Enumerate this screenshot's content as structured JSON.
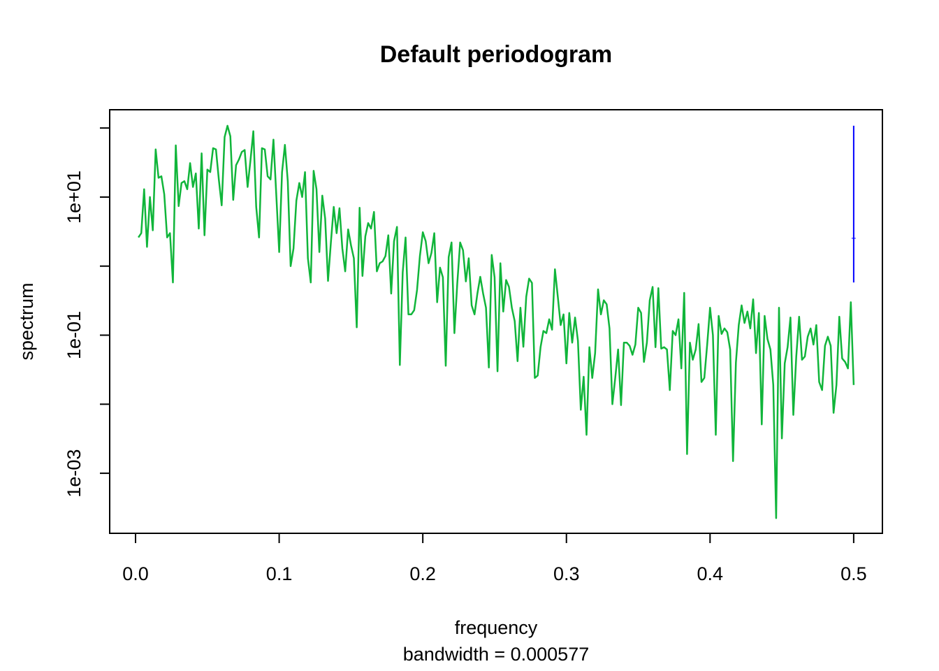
{
  "chart_data": {
    "type": "line",
    "title": "Default periodogram",
    "x_label": "frequency",
    "subtitle": "bandwidth = 0.000577",
    "y_label": "spectrum",
    "log_y": true,
    "xlim": [
      -0.018,
      0.52
    ],
    "ylim": [
      0.000135,
      184
    ],
    "xticks": [
      {
        "value": 0,
        "label": "0.0"
      },
      0.1,
      0.2,
      0.3,
      0.4,
      0.5
    ],
    "yticks": [
      {
        "value": 10,
        "label": "1e+01"
      },
      {
        "value": 0.1,
        "label": "1e-01"
      },
      {
        "value": 0.001,
        "label": "1e-03"
      }
    ],
    "yminor_ticks": [
      100,
      1,
      0.01
    ],
    "x": [
      0.002,
      0.004,
      0.006,
      0.008,
      0.01,
      0.012,
      0.014,
      0.016,
      0.018,
      0.02,
      0.022,
      0.024,
      0.026,
      0.028,
      0.03,
      0.032,
      0.034,
      0.036,
      0.038,
      0.04,
      0.042,
      0.044,
      0.046,
      0.048,
      0.05,
      0.052,
      0.054,
      0.056,
      0.058,
      0.06,
      0.062,
      0.064,
      0.066,
      0.068,
      0.07,
      0.072,
      0.074,
      0.076,
      0.078,
      0.08,
      0.082,
      0.084,
      0.086,
      0.088,
      0.09,
      0.092,
      0.094,
      0.096,
      0.098,
      0.1,
      0.102,
      0.104,
      0.106,
      0.108,
      0.11,
      0.112,
      0.114,
      0.116,
      0.118,
      0.12,
      0.122,
      0.124,
      0.126,
      0.128,
      0.13,
      0.132,
      0.134,
      0.136,
      0.138,
      0.14,
      0.142,
      0.144,
      0.146,
      0.148,
      0.15,
      0.152,
      0.154,
      0.156,
      0.158,
      0.16,
      0.162,
      0.164,
      0.166,
      0.168,
      0.17,
      0.172,
      0.174,
      0.176,
      0.178,
      0.18,
      0.182,
      0.184,
      0.186,
      0.188,
      0.19,
      0.192,
      0.194,
      0.196,
      0.198,
      0.2,
      0.202,
      0.204,
      0.206,
      0.208,
      0.21,
      0.212,
      0.214,
      0.216,
      0.218,
      0.22,
      0.222,
      0.224,
      0.226,
      0.228,
      0.23,
      0.232,
      0.234,
      0.236,
      0.238,
      0.24,
      0.242,
      0.244,
      0.246,
      0.248,
      0.25,
      0.252,
      0.254,
      0.256,
      0.258,
      0.26,
      0.262,
      0.264,
      0.266,
      0.268,
      0.27,
      0.272,
      0.274,
      0.276,
      0.278,
      0.28,
      0.282,
      0.284,
      0.286,
      0.288,
      0.29,
      0.292,
      0.294,
      0.296,
      0.298,
      0.3,
      0.302,
      0.304,
      0.306,
      0.308,
      0.31,
      0.312,
      0.314,
      0.316,
      0.318,
      0.32,
      0.322,
      0.324,
      0.326,
      0.328,
      0.33,
      0.332,
      0.334,
      0.336,
      0.338,
      0.34,
      0.342,
      0.344,
      0.346,
      0.348,
      0.35,
      0.352,
      0.354,
      0.356,
      0.358,
      0.36,
      0.362,
      0.364,
      0.366,
      0.368,
      0.37,
      0.372,
      0.374,
      0.376,
      0.378,
      0.38,
      0.382,
      0.384,
      0.386,
      0.388,
      0.39,
      0.392,
      0.394,
      0.396,
      0.398,
      0.4,
      0.402,
      0.404,
      0.406,
      0.408,
      0.41,
      0.412,
      0.414,
      0.416,
      0.418,
      0.42,
      0.422,
      0.424,
      0.426,
      0.428,
      0.43,
      0.432,
      0.434,
      0.436,
      0.438,
      0.44,
      0.442,
      0.444,
      0.446,
      0.448,
      0.45,
      0.452,
      0.454,
      0.456,
      0.458,
      0.46,
      0.462,
      0.464,
      0.466,
      0.468,
      0.47,
      0.472,
      0.474,
      0.476,
      0.478,
      0.48,
      0.482,
      0.484,
      0.486,
      0.488,
      0.49,
      0.492,
      0.494,
      0.496,
      0.498,
      0.5
    ],
    "series": [
      {
        "color": "#10b53a",
        "values": [
          2.6,
          3,
          13,
          1.9,
          10,
          3.3,
          49,
          19,
          20,
          11,
          2.6,
          3,
          0.58,
          56,
          7.4,
          16,
          17,
          13,
          31,
          14,
          22,
          3.5,
          43,
          2.8,
          25,
          23,
          51,
          49,
          18,
          7.6,
          74,
          108,
          76,
          9.1,
          29,
          35,
          45,
          48,
          14,
          34,
          90,
          7.2,
          2.6,
          51,
          49,
          20,
          18,
          68,
          10.5,
          1.6,
          23,
          57,
          17,
          1.0,
          1.8,
          8.9,
          16,
          10,
          23,
          1.3,
          0.58,
          24,
          13,
          1.6,
          10.5,
          4.9,
          0.61,
          2.2,
          7.2,
          3.0,
          6.9,
          1.8,
          0.84,
          3.4,
          2.0,
          1.3,
          0.13,
          7.0,
          0.72,
          2.7,
          4.2,
          3.5,
          6.1,
          0.84,
          1.1,
          1.17,
          1.4,
          2.8,
          0.4,
          2.3,
          3.7,
          0.037,
          0.81,
          2.6,
          0.2,
          0.2,
          0.23,
          0.45,
          1.4,
          3.1,
          2.3,
          1.1,
          1.55,
          3.0,
          0.3,
          0.95,
          0.69,
          0.036,
          1.35,
          2.2,
          0.107,
          0.56,
          2.2,
          1.7,
          0.6,
          1.3,
          0.27,
          0.2,
          0.4,
          0.7,
          0.4,
          0.25,
          0.034,
          1.45,
          0.69,
          0.03,
          1.1,
          0.22,
          0.63,
          0.5,
          0.25,
          0.16,
          0.042,
          0.25,
          0.068,
          0.36,
          0.66,
          0.57,
          0.024,
          0.026,
          0.067,
          0.115,
          0.107,
          0.17,
          0.12,
          0.9,
          0.36,
          0.14,
          0.2,
          0.039,
          0.21,
          0.078,
          0.18,
          0.083,
          0.0083,
          0.025,
          0.0036,
          0.067,
          0.024,
          0.055,
          0.46,
          0.2,
          0.32,
          0.28,
          0.125,
          0.01,
          0.024,
          0.062,
          0.0097,
          0.078,
          0.078,
          0.07,
          0.052,
          0.073,
          0.25,
          0.21,
          0.041,
          0.078,
          0.32,
          0.5,
          0.067,
          0.48,
          0.064,
          0.067,
          0.062,
          0.016,
          0.115,
          0.1,
          0.17,
          0.033,
          0.41,
          0.0019,
          0.078,
          0.044,
          0.062,
          0.145,
          0.021,
          0.024,
          0.073,
          0.25,
          0.1,
          0.0036,
          0.19,
          0.104,
          0.125,
          0.11,
          0.062,
          0.0015,
          0.04,
          0.14,
          0.27,
          0.15,
          0.22,
          0.125,
          0.33,
          0.055,
          0.21,
          0.0051,
          0.19,
          0.088,
          0.062,
          0.019,
          0.000224,
          0.25,
          0.0032,
          0.039,
          0.067,
          0.18,
          0.007,
          0.049,
          0.185,
          0.044,
          0.049,
          0.095,
          0.125,
          0.073,
          0.14,
          0.021,
          0.016,
          0.07,
          0.095,
          0.07,
          0.0075,
          0.019,
          0.185,
          0.046,
          0.041,
          0.033,
          0.3,
          0.019
        ]
      }
    ],
    "ci_bar": {
      "x": 0.5,
      "center": 2.53,
      "lower": 0.58,
      "upper": 108,
      "color": "#0000ff"
    }
  }
}
